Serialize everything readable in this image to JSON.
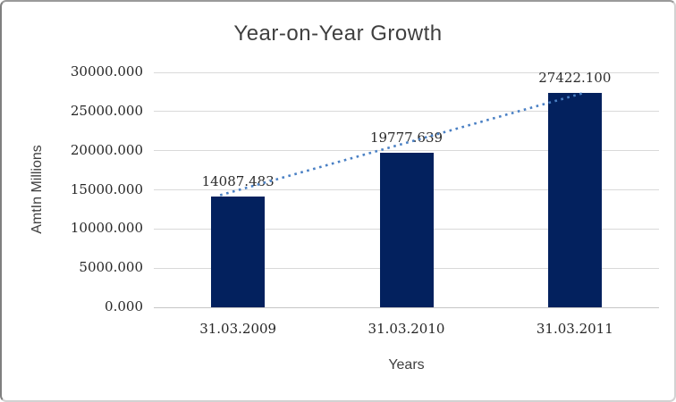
{
  "chart_data": {
    "type": "bar",
    "title": "Year-on-Year Growth",
    "categories": [
      "31.03.2009",
      "31.03.2010",
      "31.03.2011"
    ],
    "values": [
      14087.483,
      19777.639,
      27422.1
    ],
    "data_labels": [
      "14087.483",
      "19777.639",
      "27422.100"
    ],
    "xlabel": "Years",
    "ylabel": "AmtIn Millions",
    "ylim": [
      0,
      30000
    ],
    "ytick_step": 5000,
    "ytick_labels": [
      "0.000",
      "5000.000",
      "10000.000",
      "15000.000",
      "20000.000",
      "25000.000",
      "30000.000"
    ],
    "grid": true,
    "legend": false,
    "trendline": {
      "type": "linear",
      "style": "dotted"
    },
    "colors": {
      "bar": "#03215E",
      "trendline": "#4A80C4",
      "gridline": "#D9D9D9",
      "axis": "#C6C6C6",
      "number_text": "#262626",
      "title_text": "#3F3F3F"
    }
  }
}
